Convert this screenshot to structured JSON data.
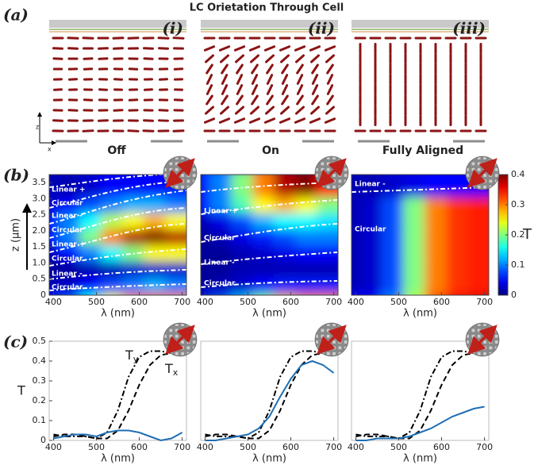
{
  "title": "LC Orietation Through Cell",
  "panel_labels": [
    "(a)",
    "(b)",
    "(c)"
  ],
  "orientation_panels": [
    {
      "label": "(i)",
      "state": "Off",
      "mode": "twist"
    },
    {
      "label": "(ii)",
      "state": "On",
      "mode": "tilt"
    },
    {
      "label": "(iii)",
      "state": "Fully Aligned",
      "mode": "vertical"
    }
  ],
  "axis_glyphs": {
    "z": "z",
    "x": "x"
  },
  "chart_data": [
    {
      "type": "heatmap",
      "x": [
        400,
        450,
        500,
        550,
        600,
        650,
        700
      ],
      "y": [
        0,
        0.5,
        1,
        1.5,
        2,
        2.5,
        3,
        3.5
      ],
      "values": [
        [
          0.05,
          0.08,
          0.15,
          0.25,
          0.3,
          0.32,
          0.3
        ],
        [
          0.02,
          0.03,
          0.05,
          0.08,
          0.1,
          0.12,
          0.1
        ],
        [
          0.01,
          0.01,
          0.02,
          0.02,
          0.03,
          0.03,
          0.03
        ],
        [
          0.02,
          0.05,
          0.1,
          0.15,
          0.2,
          0.25,
          0.25
        ],
        [
          0.05,
          0.1,
          0.2,
          0.3,
          0.38,
          0.4,
          0.38
        ],
        [
          0.05,
          0.1,
          0.15,
          0.22,
          0.25,
          0.28,
          0.25
        ],
        [
          0.03,
          0.05,
          0.08,
          0.1,
          0.12,
          0.12,
          0.1
        ],
        [
          0.02,
          0.02,
          0.03,
          0.05,
          0.05,
          0.05,
          0.05
        ]
      ],
      "xlim": [
        390,
        710
      ],
      "ylim": [
        0,
        3.75
      ],
      "xticks": [
        400,
        500,
        600,
        700
      ],
      "yticks": [
        0,
        0.5,
        {
          "value": 1,
          "label": "1.0"
        },
        1.5,
        {
          "value": 2,
          "label": "2.0"
        },
        2.5,
        {
          "value": 3,
          "label": "3.0"
        },
        3.5
      ],
      "xlabel": "λ (nm)",
      "ylabel": "z (μm)",
      "clim": [
        0,
        0.4
      ],
      "annotations": [
        "Linear +",
        "Circular",
        "Linear -",
        "Circular",
        "Linear +",
        "Circular",
        "Linear -",
        "Circular"
      ]
    },
    {
      "type": "heatmap",
      "x": [
        400,
        450,
        500,
        550,
        600,
        650,
        700
      ],
      "y": [
        0,
        0.5,
        1,
        1.5,
        2,
        2.5,
        3,
        3.5
      ],
      "values": [
        [
          0.05,
          0.08,
          0.12,
          0.2,
          0.28,
          0.3,
          0.3
        ],
        [
          0.01,
          0.02,
          0.03,
          0.05,
          0.06,
          0.06,
          0.06
        ],
        [
          0.01,
          0.01,
          0.02,
          0.02,
          0.02,
          0.02,
          0.02
        ],
        [
          0.01,
          0.01,
          0.02,
          0.03,
          0.04,
          0.05,
          0.05
        ],
        [
          0.01,
          0.02,
          0.04,
          0.06,
          0.08,
          0.1,
          0.1
        ],
        [
          0.02,
          0.04,
          0.08,
          0.12,
          0.15,
          0.15,
          0.14
        ],
        [
          0.05,
          0.1,
          0.18,
          0.25,
          0.28,
          0.25,
          0.2
        ],
        [
          0.05,
          0.1,
          0.2,
          0.3,
          0.38,
          0.4,
          0.35
        ]
      ],
      "xlim": [
        390,
        710
      ],
      "ylim": [
        0,
        3.75
      ],
      "xticks": [
        400,
        500,
        600,
        700
      ],
      "xlabel": "λ (nm)",
      "clim": [
        0,
        0.4
      ],
      "annotations": [
        "Linear +",
        "Circular",
        "Linear -",
        "Circular"
      ]
    },
    {
      "type": "heatmap",
      "x": [
        400,
        450,
        500,
        550,
        600,
        650,
        700
      ],
      "y": [
        0,
        0.5,
        1,
        1.5,
        2,
        2.5,
        3,
        3.5
      ],
      "values": [
        [
          0.05,
          0.05,
          0.1,
          0.22,
          0.32,
          0.35,
          0.36
        ],
        [
          0.02,
          0.03,
          0.08,
          0.2,
          0.3,
          0.33,
          0.34
        ],
        [
          0.02,
          0.03,
          0.08,
          0.2,
          0.3,
          0.33,
          0.34
        ],
        [
          0.02,
          0.03,
          0.08,
          0.2,
          0.3,
          0.33,
          0.34
        ],
        [
          0.02,
          0.03,
          0.08,
          0.2,
          0.3,
          0.33,
          0.34
        ],
        [
          0.02,
          0.03,
          0.08,
          0.2,
          0.3,
          0.33,
          0.34
        ],
        [
          0.02,
          0.03,
          0.08,
          0.2,
          0.3,
          0.33,
          0.34
        ],
        [
          0.02,
          0.02,
          0.03,
          0.04,
          0.05,
          0.05,
          0.05
        ]
      ],
      "xlim": [
        390,
        710
      ],
      "ylim": [
        0,
        3.75
      ],
      "xticks": [
        400,
        500,
        600,
        700
      ],
      "xlabel": "λ (nm)",
      "clim": [
        0,
        0.4
      ],
      "annotations": [
        "Linear -",
        "Circular"
      ],
      "colorbar": {
        "ticks": [
          0,
          0.1,
          0.2,
          0.3,
          0.4
        ],
        "label": "T"
      }
    },
    {
      "type": "line",
      "x": [
        400,
        425,
        450,
        475,
        500,
        525,
        550,
        575,
        600,
        625,
        650,
        675,
        700
      ],
      "series": [
        {
          "color": "#000000",
          "dash": "dashdot",
          "values": [
            0.03,
            0.02,
            0.02,
            0.02,
            0.01,
            0.04,
            0.15,
            0.32,
            0.42,
            0.45,
            0.45,
            0.44,
            0.43
          ]
        },
        {
          "color": "#000000",
          "dash": "dash",
          "values": [
            0.02,
            0.03,
            0.03,
            0.02,
            0.01,
            0.01,
            0.05,
            0.15,
            0.28,
            0.38,
            0.43,
            0.44,
            0.43
          ]
        },
        {
          "color": "#1f6fb4",
          "dash": "solid",
          "values": [
            0.01,
            0.02,
            0.03,
            0.03,
            0.02,
            0.04,
            0.05,
            0.05,
            0.04,
            0.02,
            0.0,
            0.01,
            0.04
          ]
        }
      ],
      "xlim": [
        390,
        710
      ],
      "ylim": [
        0,
        0.5
      ],
      "xticks": [
        400,
        500,
        600,
        700
      ],
      "yticks": [
        0,
        0.1,
        0.2,
        0.3,
        0.4,
        0.5
      ],
      "xlabel": "λ (nm)",
      "ylabel": "T",
      "annotations": [
        {
          "text": "T",
          "subscript": "y"
        },
        {
          "text": "T",
          "subscript": "x"
        }
      ]
    },
    {
      "type": "line",
      "x": [
        400,
        425,
        450,
        475,
        500,
        525,
        550,
        575,
        600,
        625,
        650,
        675,
        700
      ],
      "series": [
        {
          "color": "#000000",
          "dash": "dashdot",
          "values": [
            0.03,
            0.02,
            0.02,
            0.02,
            0.01,
            0.04,
            0.15,
            0.32,
            0.42,
            0.45,
            0.45,
            0.44,
            0.43
          ]
        },
        {
          "color": "#000000",
          "dash": "dash",
          "values": [
            0.02,
            0.03,
            0.03,
            0.02,
            0.01,
            0.01,
            0.05,
            0.15,
            0.28,
            0.38,
            0.43,
            0.44,
            0.43
          ]
        },
        {
          "color": "#1f6fb4",
          "dash": "solid",
          "values": [
            0.0,
            0.0,
            0.01,
            0.02,
            0.03,
            0.06,
            0.12,
            0.22,
            0.31,
            0.38,
            0.4,
            0.38,
            0.34
          ]
        }
      ],
      "xlim": [
        390,
        710
      ],
      "ylim": [
        0,
        0.5
      ],
      "xticks": [
        400,
        500,
        600,
        700
      ],
      "xlabel": "λ (nm)"
    },
    {
      "type": "line",
      "x": [
        400,
        425,
        450,
        475,
        500,
        525,
        550,
        575,
        600,
        625,
        650,
        675,
        700
      ],
      "series": [
        {
          "color": "#000000",
          "dash": "dashdot",
          "values": [
            0.03,
            0.02,
            0.02,
            0.02,
            0.01,
            0.04,
            0.15,
            0.32,
            0.42,
            0.45,
            0.45,
            0.44,
            0.43
          ]
        },
        {
          "color": "#000000",
          "dash": "dash",
          "values": [
            0.02,
            0.03,
            0.03,
            0.02,
            0.01,
            0.01,
            0.05,
            0.15,
            0.28,
            0.38,
            0.43,
            0.44,
            0.43
          ]
        },
        {
          "color": "#1f6fb4",
          "dash": "solid",
          "values": [
            0.0,
            0.0,
            0.01,
            0.01,
            0.01,
            0.02,
            0.04,
            0.06,
            0.09,
            0.12,
            0.14,
            0.16,
            0.17
          ]
        }
      ],
      "xlim": [
        390,
        710
      ],
      "ylim": [
        0,
        0.5
      ],
      "xticks": [
        400,
        500,
        600,
        700
      ],
      "xlabel": "λ (nm)"
    }
  ]
}
